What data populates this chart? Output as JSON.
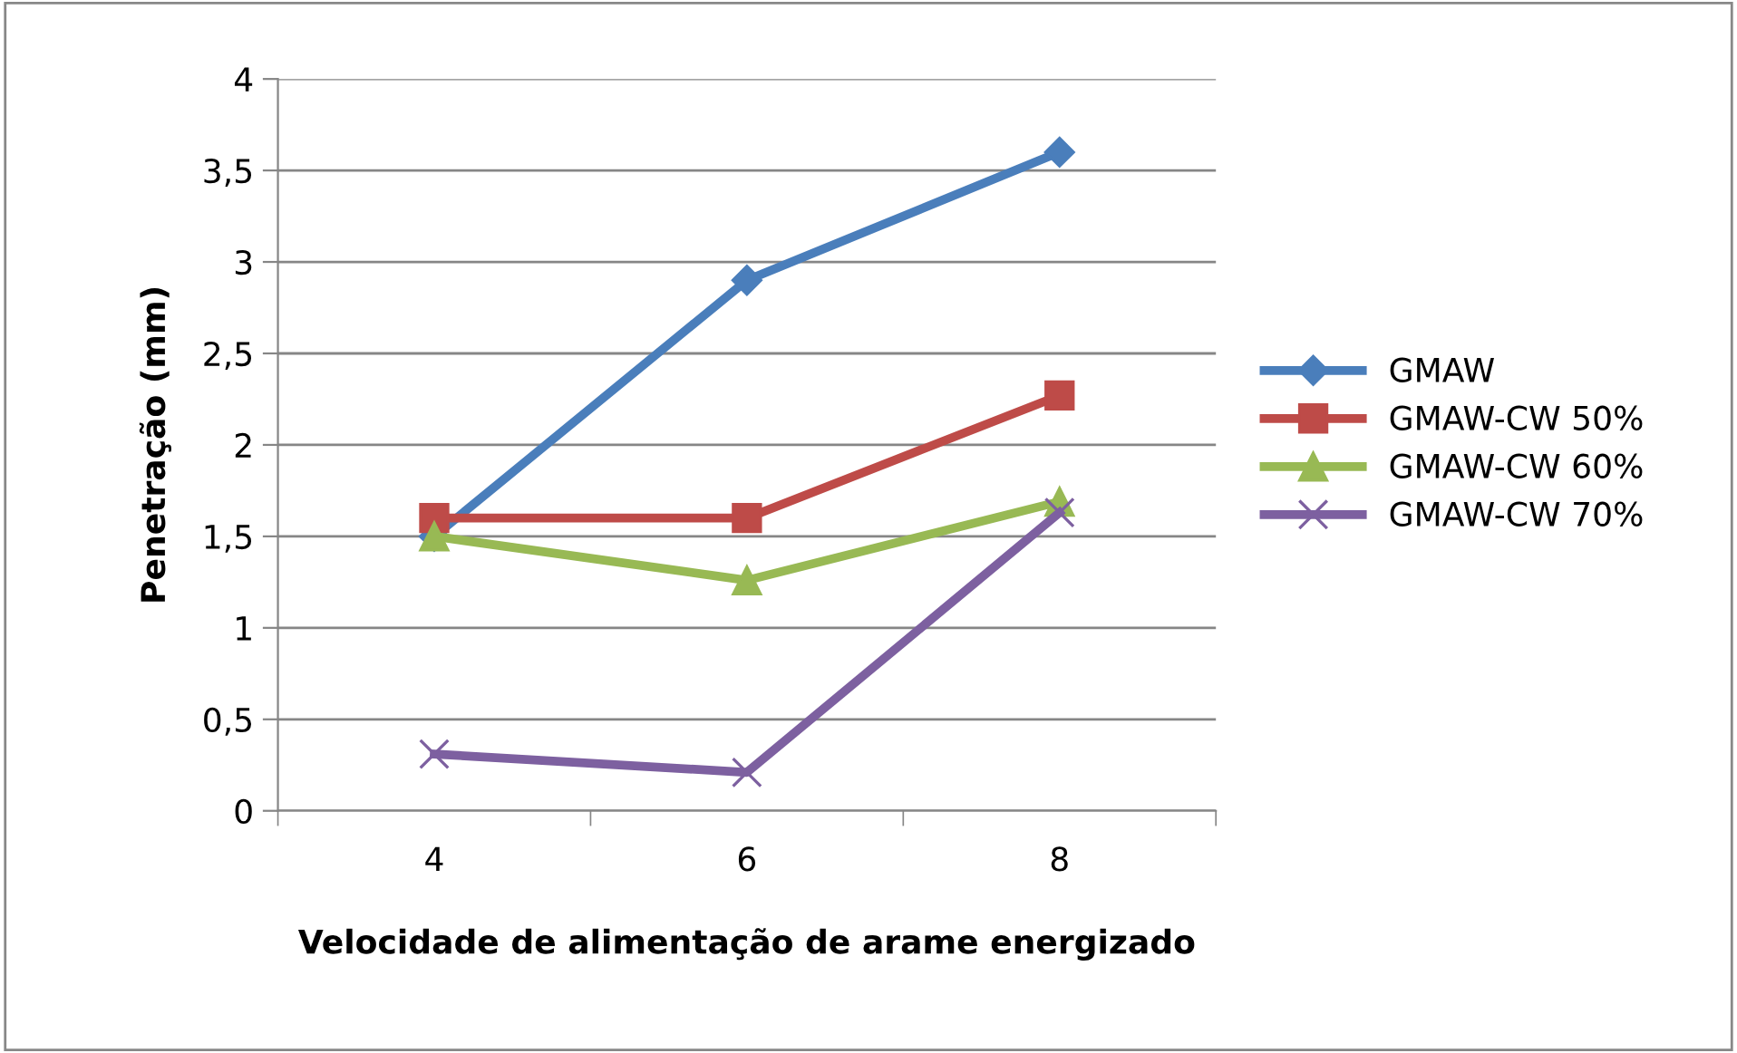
{
  "chart_data": {
    "type": "line",
    "xlabel": "Velocidade de alimentação de arame energizado",
    "ylabel": "Penetração (mm)",
    "categories": [
      "4",
      "6",
      "8"
    ],
    "series": [
      {
        "name": "GMAW",
        "color": "#4a7ebb",
        "marker": "diamond",
        "values": [
          1.5,
          2.9,
          3.6
        ]
      },
      {
        "name": "GMAW-CW 50%",
        "color": "#be4b48",
        "marker": "square",
        "values": [
          1.6,
          1.6,
          2.27
        ]
      },
      {
        "name": "GMAW-CW 60%",
        "color": "#98b954",
        "marker": "triangle",
        "values": [
          1.5,
          1.26,
          1.69
        ]
      },
      {
        "name": "GMAW-CW 70%",
        "color": "#7d60a0",
        "marker": "cross",
        "values": [
          0.31,
          0.21,
          1.63
        ]
      }
    ],
    "ylim": [
      0,
      4
    ],
    "yticks": [
      {
        "value": 0,
        "label": "0"
      },
      {
        "value": 0.5,
        "label": "0,5"
      },
      {
        "value": 1,
        "label": "1"
      },
      {
        "value": 1.5,
        "label": "1,5"
      },
      {
        "value": 2,
        "label": "2"
      },
      {
        "value": 2.5,
        "label": "2,5"
      },
      {
        "value": 3,
        "label": "3"
      },
      {
        "value": 3.5,
        "label": "3,5"
      },
      {
        "value": 4,
        "label": "4"
      }
    ],
    "grid": "y",
    "legend": "right",
    "line_style": "solid"
  }
}
